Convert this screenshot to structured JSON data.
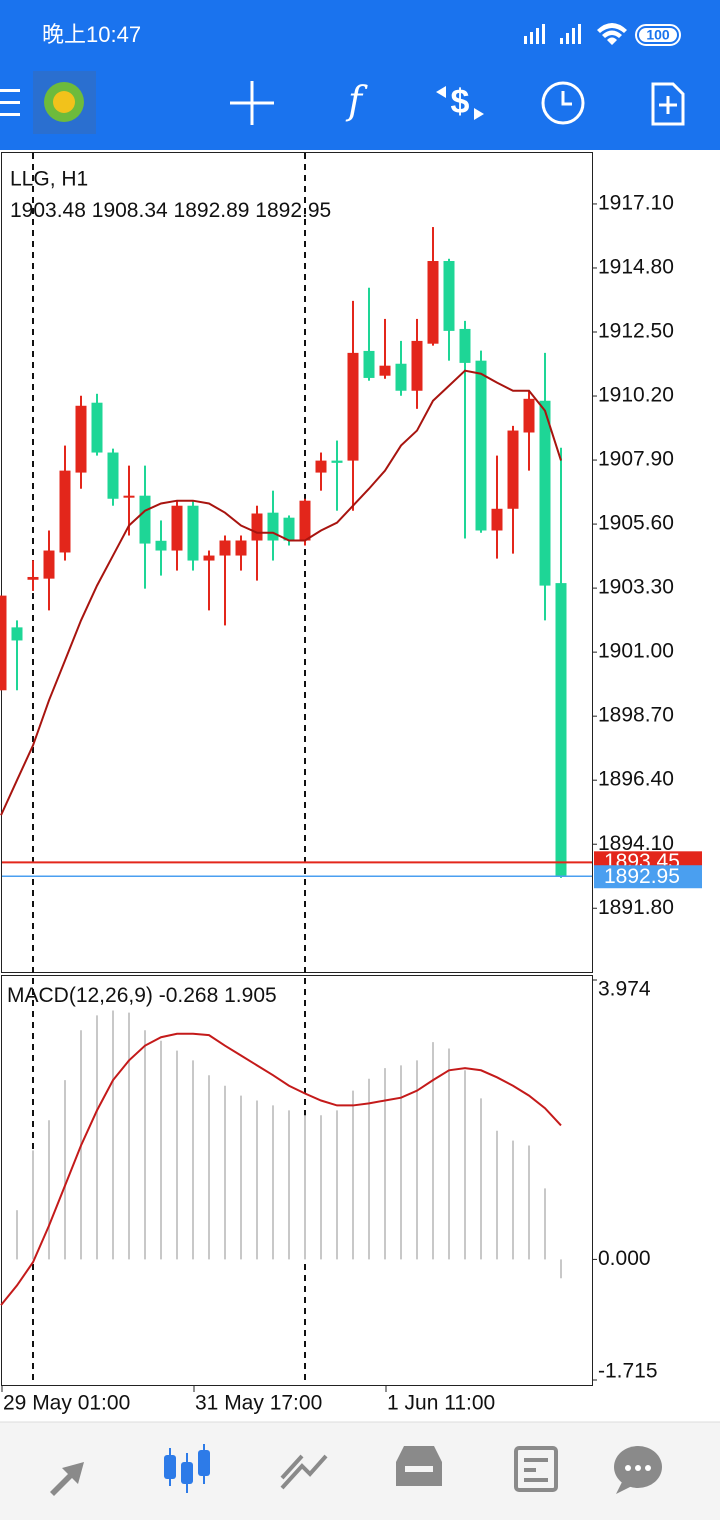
{
  "status_bar": {
    "time": "晚上10:47",
    "battery": "100"
  },
  "chart_data": {
    "type": "candlestick",
    "symbol_label": "LLG, H1",
    "categories": [
      "29 May 01:00",
      null,
      null,
      null,
      null,
      null,
      null,
      null,
      null,
      null,
      null,
      null,
      "31 May 17:00",
      null,
      null,
      null,
      null,
      null,
      null,
      null,
      null,
      null,
      null,
      null,
      "1 Jun 11:00",
      null,
      null,
      null,
      null,
      null,
      null,
      null,
      null,
      null,
      null,
      null
    ],
    "open": [
      1899.63,
      1901.89,
      1903.6,
      1903.64,
      1904.58,
      1907.45,
      1909.96,
      1908.17,
      1906.55,
      1906.62,
      1905.0,
      1904.65,
      1906.26,
      1904.29,
      1904.47,
      1904.47,
      1905.01,
      1906.01,
      1905.83,
      1905.01,
      1907.45,
      1907.88,
      1907.88,
      1911.82,
      1910.93,
      1911.36,
      1910.39,
      1912.08,
      1915.05,
      1912.61,
      1911.47,
      1905.37,
      1906.15,
      1908.89,
      1910.03,
      1903.48
    ],
    "high": [
      1903.03,
      1902.14,
      1904.3,
      1905.37,
      1908.42,
      1910.21,
      1910.28,
      1908.31,
      1907.7,
      1907.7,
      1905.73,
      1906.44,
      1906.44,
      1904.65,
      1905.19,
      1905.19,
      1906.26,
      1906.8,
      1905.91,
      1906.51,
      1908.17,
      1908.6,
      1913.62,
      1914.09,
      1912.97,
      1912.18,
      1912.97,
      1916.27,
      1915.13,
      1912.9,
      1911.83,
      1908.06,
      1909.13,
      1910.39,
      1911.75,
      1908.34
    ],
    "low": [
      1899.63,
      1899.63,
      1903.2,
      1902.5,
      1904.29,
      1906.87,
      1908.06,
      1906.26,
      1905.19,
      1903.28,
      1903.75,
      1903.93,
      1903.93,
      1902.5,
      1901.96,
      1903.93,
      1903.57,
      1904.29,
      1904.83,
      1904.83,
      1906.8,
      1906.08,
      1906.08,
      1910.75,
      1910.82,
      1910.21,
      1909.74,
      1912.01,
      1911.47,
      1905.08,
      1905.29,
      1904.36,
      1904.54,
      1907.52,
      1902.14,
      1892.89
    ],
    "close": [
      1903.03,
      1901.42,
      1903.7,
      1904.65,
      1907.52,
      1909.85,
      1908.17,
      1906.51,
      1906.62,
      1904.9,
      1904.65,
      1906.26,
      1904.29,
      1904.47,
      1905.01,
      1905.01,
      1905.98,
      1905.01,
      1905.01,
      1906.44,
      1907.88,
      1907.8,
      1911.75,
      1910.85,
      1911.29,
      1910.39,
      1912.18,
      1915.05,
      1912.54,
      1911.39,
      1905.37,
      1906.15,
      1908.96,
      1910.1,
      1903.39,
      1892.95
    ],
    "colors": {
      "up": "#e3261b",
      "down": "#1ed696"
    },
    "ma": {
      "color": "#a8140f",
      "values": [
        1895.14,
        1896.4,
        1897.65,
        1899.27,
        1900.7,
        1902.14,
        1903.39,
        1904.47,
        1905.55,
        1906.08,
        1906.34,
        1906.44,
        1906.44,
        1906.34,
        1906.01,
        1905.55,
        1905.29,
        1905.29,
        1905.01,
        1905.01,
        1905.37,
        1905.65,
        1906.26,
        1906.87,
        1907.52,
        1908.42,
        1908.96,
        1910.03,
        1910.57,
        1911.11,
        1911.0,
        1910.68,
        1910.39,
        1910.39,
        1909.67,
        1907.88
      ]
    },
    "ylim": [
      1889.51,
      1918.93
    ],
    "yticks": [
      {
        "value": 1917.1,
        "label": "1917.10"
      },
      {
        "value": 1914.8,
        "label": "1914.80"
      },
      {
        "value": 1912.5,
        "label": "1912.50"
      },
      {
        "value": 1910.2,
        "label": "1910.20"
      },
      {
        "value": 1907.9,
        "label": "1907.90"
      },
      {
        "value": 1905.6,
        "label": "1905.60"
      },
      {
        "value": 1903.3,
        "label": "1903.30"
      },
      {
        "value": 1901.0,
        "label": "1901.00"
      },
      {
        "value": 1898.7,
        "label": "1898.70"
      },
      {
        "value": 1896.4,
        "label": "1896.40"
      },
      {
        "value": 1894.1,
        "label": "1894.10"
      },
      {
        "value": 1891.8,
        "label": "1891.80"
      }
    ],
    "ask": {
      "value": 1893.45,
      "color": "#e3261b"
    },
    "bid_color": "#4a9ff0",
    "macd": {
      "label": "MACD(12,26,9)",
      "histogram_color": "#c8c8c8",
      "signal_color": "#c41a1a",
      "histogram": [
        null,
        0.7,
        1.55,
        1.98,
        2.55,
        3.26,
        3.47,
        3.54,
        3.51,
        3.26,
        3.11,
        2.97,
        2.83,
        2.62,
        2.47,
        2.33,
        2.26,
        2.19,
        2.12,
        2.05,
        2.05,
        2.12,
        2.4,
        2.57,
        2.72,
        2.76,
        2.83,
        3.09,
        3.0,
        2.69,
        2.29,
        1.83,
        1.69,
        1.62,
        1.01,
        -0.268
      ],
      "signal": [
        -0.65,
        -0.37,
        -0.04,
        0.48,
        1.05,
        1.62,
        2.12,
        2.55,
        2.83,
        3.04,
        3.16,
        3.21,
        3.21,
        3.19,
        3.04,
        2.9,
        2.76,
        2.62,
        2.47,
        2.36,
        2.26,
        2.19,
        2.19,
        2.22,
        2.26,
        2.3,
        2.4,
        2.55,
        2.69,
        2.72,
        2.69,
        2.59,
        2.47,
        2.33,
        2.15,
        1.905
      ],
      "ylim": [
        -1.715,
        3.974
      ],
      "yticks": [
        3.974,
        {
          "value": 0,
          "label": "0.000"
        },
        -1.715
      ]
    }
  }
}
